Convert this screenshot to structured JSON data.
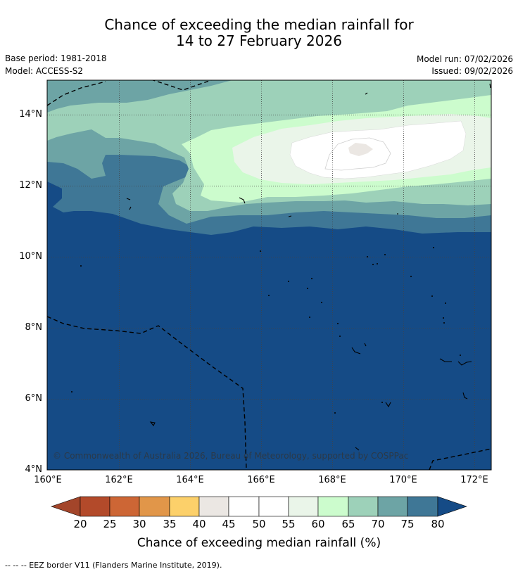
{
  "title": {
    "line1": "Chance of exceeding the median rainfall for",
    "line2": "14 to 27 February 2026"
  },
  "meta": {
    "base_period": "Base period: 1981-2018",
    "model": "Model: ACCESS-S2",
    "model_run": "Model run: 07/02/2026",
    "issued": "Issued: 09/02/2026"
  },
  "map": {
    "lat_labels": [
      "14°N",
      "12°N",
      "10°N",
      "8°N",
      "6°N",
      "4°N"
    ],
    "lon_labels": [
      "160°E",
      "162°E",
      "164°E",
      "166°E",
      "168°E",
      "170°E",
      "172°E"
    ],
    "copyright": "© Commonwealth of Australia 2026, Bureau of Meteorology, supported by COSPPac"
  },
  "colorbar": {
    "ticks": [
      "20",
      "25",
      "30",
      "35",
      "40",
      "45",
      "50",
      "55",
      "60",
      "65",
      "70",
      "75",
      "80"
    ],
    "title": "Chance of exceeding median rainfall (%)",
    "colors": {
      "below_20": "#a3452a",
      "20_25": "#b34a2a",
      "25_30": "#cd6635",
      "30_35": "#e19649",
      "35_40": "#fcd06a",
      "40_45": "#ebe7e3",
      "45_50": "#ffffff",
      "50_55": "#ffffff",
      "55_60": "#eaf5e9",
      "60_65": "#ccfccd",
      "65_70": "#9dd1b9",
      "70_75": "#6da4a5",
      "75_80": "#3f7796",
      "above_80": "#154b86"
    }
  },
  "legend_note": "--  --  -- EEZ border V11 (Flanders Marine Institute, 2019)."
}
